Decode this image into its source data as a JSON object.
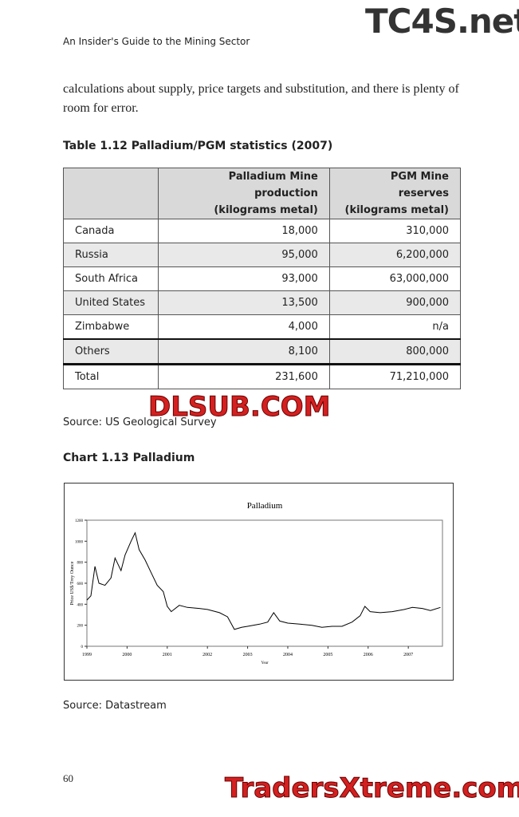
{
  "header": {
    "running_title": "An Insider's Guide to the Mining Sector",
    "watermark": "TC4S.net"
  },
  "paragraph": "calculations about supply, price targets and substitution, and there is plenty of room for error.",
  "table": {
    "caption": "Table 1.12 Palladium/PGM statistics (2007)",
    "columns": [
      [
        ""
      ],
      [
        "Palladium Mine production",
        "(kilograms metal)"
      ],
      [
        "PGM Mine reserves",
        "(kilograms metal)"
      ]
    ],
    "rows": [
      [
        "Canada",
        "18,000",
        "310,000"
      ],
      [
        "Russia",
        "95,000",
        "6,200,000"
      ],
      [
        "South Africa",
        "93,000",
        "63,000,000"
      ],
      [
        "United States",
        "13,500",
        "900,000"
      ],
      [
        "Zimbabwe",
        "4,000",
        "n/a"
      ],
      [
        "Others",
        "8,100",
        "800,000"
      ],
      [
        "Total",
        "231,600",
        "71,210,000"
      ]
    ],
    "source": "Source: US Geological Survey"
  },
  "watermark_middle": "DLSUB.COM",
  "chart_caption": "Chart 1.13 Palladium",
  "chart_data": {
    "type": "line",
    "title": "Palladium",
    "x_label": "Year",
    "y_label": "Price US$/Troy Ounce",
    "color": "#000000",
    "x": [
      1999.0,
      1999.1,
      1999.2,
      1999.3,
      1999.45,
      1999.6,
      1999.7,
      1999.85,
      1999.95,
      2000.1,
      2000.2,
      2000.3,
      2000.45,
      2000.6,
      2000.75,
      2000.9,
      2001.0,
      2001.1,
      2001.3,
      2001.5,
      2001.8,
      2002.0,
      2002.3,
      2002.5,
      2002.67,
      2002.85,
      2003.0,
      2003.3,
      2003.5,
      2003.65,
      2003.8,
      2004.0,
      2004.3,
      2004.6,
      2004.85,
      2005.1,
      2005.35,
      2005.6,
      2005.8,
      2005.92,
      2006.05,
      2006.3,
      2006.6,
      2006.9,
      2007.1,
      2007.35,
      2007.55,
      2007.8
    ],
    "values": [
      440,
      480,
      760,
      600,
      580,
      650,
      840,
      720,
      870,
      1000,
      1080,
      920,
      820,
      700,
      580,
      520,
      380,
      330,
      390,
      370,
      360,
      350,
      320,
      280,
      160,
      180,
      190,
      210,
      230,
      320,
      240,
      220,
      210,
      200,
      180,
      190,
      190,
      230,
      290,
      380,
      330,
      320,
      330,
      350,
      370,
      360,
      340,
      370
    ],
    "xlim": [
      1999,
      2007.85
    ],
    "xticks": [
      1999,
      2000,
      2001,
      2002,
      2003,
      2004,
      2005,
      2006,
      2007
    ],
    "ylim": [
      0,
      1200
    ],
    "yticks": [
      0,
      200,
      400,
      600,
      800,
      1000,
      1200
    ],
    "grid": false
  },
  "chart_source": "Source: Datastream",
  "page_number": "60",
  "watermark_bottom": "TradersXtreme.com"
}
